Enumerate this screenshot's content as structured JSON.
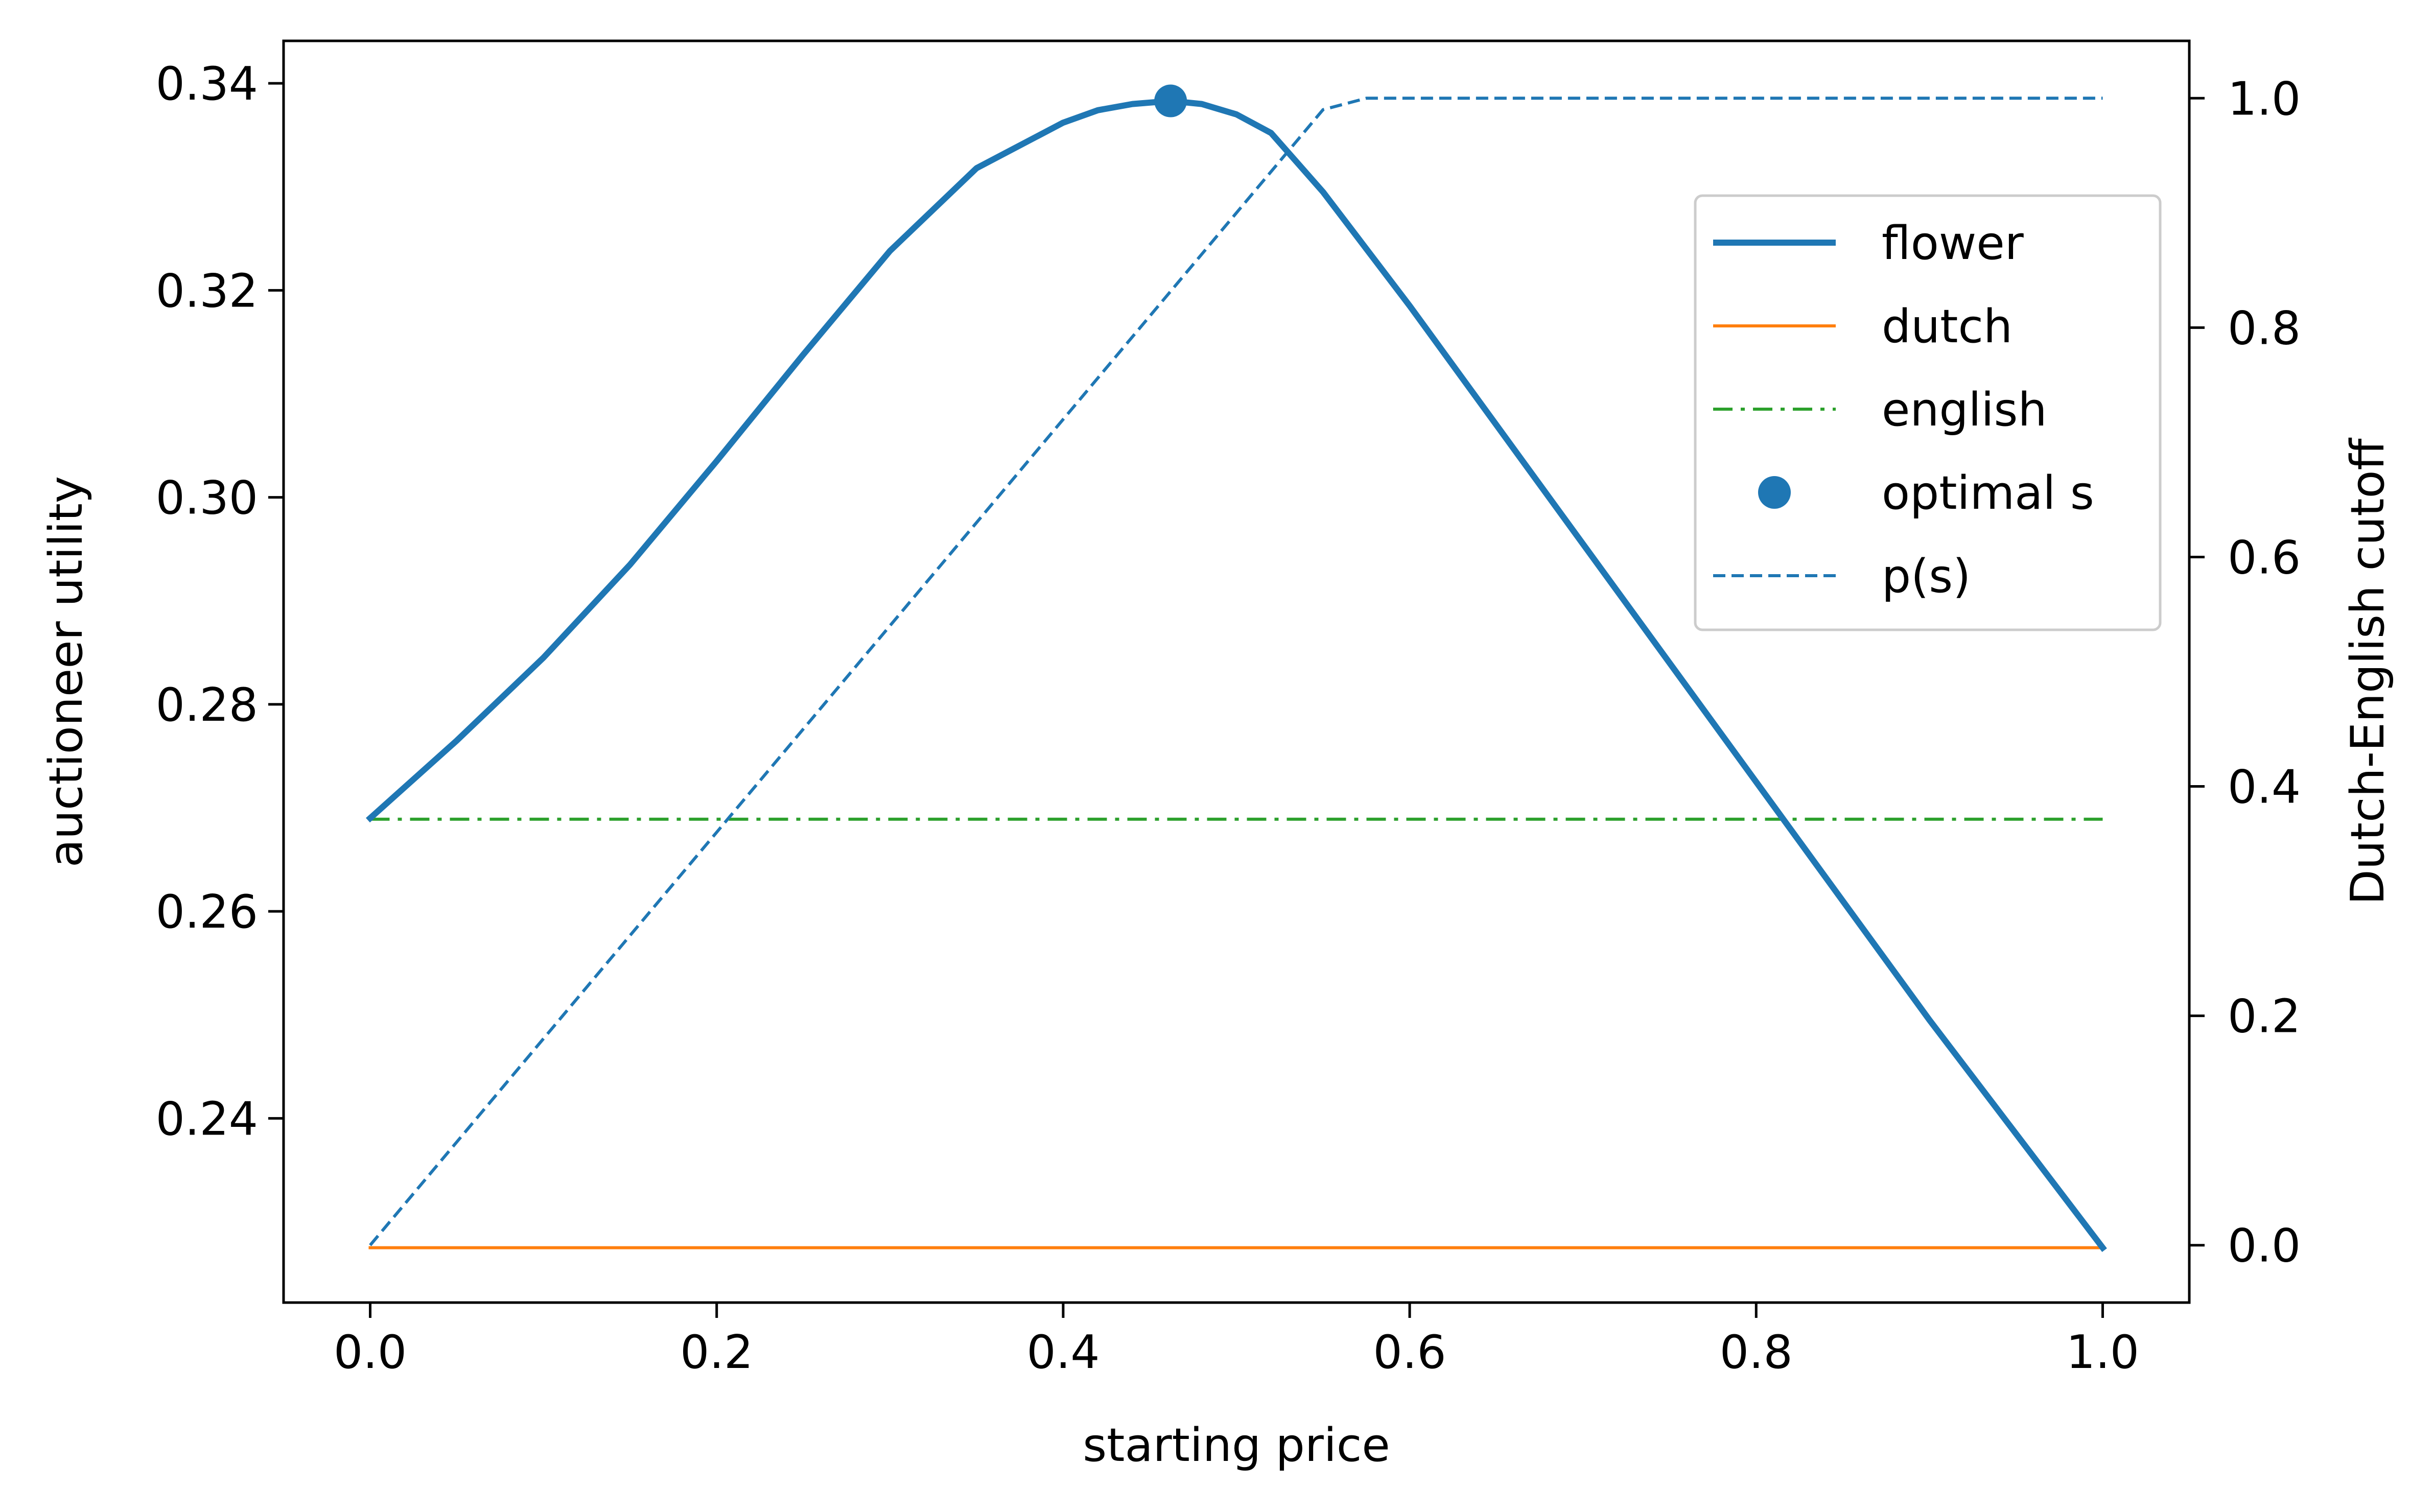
{
  "chart_data": {
    "type": "line",
    "x": [
      0.0,
      0.05,
      0.1,
      0.15,
      0.2,
      0.25,
      0.3,
      0.35,
      0.4,
      0.42,
      0.44,
      0.462,
      0.48,
      0.5,
      0.52,
      0.55,
      0.6,
      0.7,
      0.8,
      0.9,
      1.0
    ],
    "series": [
      {
        "name": "flower",
        "axis": "left",
        "values": [
          0.269,
          0.2765,
          0.2845,
          0.2935,
          0.3035,
          0.3138,
          0.3238,
          0.3318,
          0.3362,
          0.3374,
          0.338,
          0.3383,
          0.338,
          0.337,
          0.3352,
          0.3295,
          0.3185,
          0.2955,
          0.2725,
          0.2495,
          0.2275
        ],
        "color": "#1f77b4",
        "style": "solid-thick"
      },
      {
        "name": "dutch",
        "axis": "left",
        "x": [
          0.0,
          1.0
        ],
        "values": [
          0.2275,
          0.2275
        ],
        "color": "#ff7f0e",
        "style": "solid"
      },
      {
        "name": "english",
        "axis": "left",
        "x": [
          0.0,
          1.0
        ],
        "values": [
          0.2689,
          0.2689
        ],
        "color": "#2ca02c",
        "style": "dashdot"
      },
      {
        "name": "optimal s",
        "axis": "left",
        "x": [
          0.462
        ],
        "values": [
          0.3383
        ],
        "color": "#1f77b4",
        "style": "marker"
      },
      {
        "name": "p(s)",
        "axis": "right",
        "x": [
          0.0,
          0.55,
          0.575,
          1.0
        ],
        "values": [
          0.0,
          0.99,
          1.0,
          1.0
        ],
        "color": "#1f77b4",
        "style": "dashed"
      }
    ],
    "xlabel": "starting price",
    "ylabel": "auctioneer utility",
    "y2label": "Dutch-English cutoff",
    "xlim": [
      -0.05,
      1.05
    ],
    "ylim": [
      0.2222,
      0.3441
    ],
    "y2lim": [
      -0.05,
      1.05
    ],
    "xticks": [
      "0.0",
      "0.2",
      "0.4",
      "0.6",
      "0.8",
      "1.0"
    ],
    "yticks": [
      "0.24",
      "0.26",
      "0.28",
      "0.30",
      "0.32",
      "0.34"
    ],
    "y2ticks": [
      "0.0",
      "0.2",
      "0.4",
      "0.6",
      "0.8",
      "1.0"
    ],
    "legend_position": "upper-right",
    "grid": false
  }
}
